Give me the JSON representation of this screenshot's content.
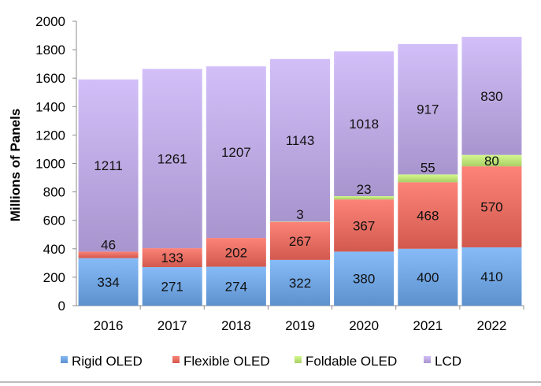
{
  "chart_data": {
    "type": "bar",
    "stacked": true,
    "title": "",
    "xlabel": "",
    "ylabel": "Millions of Panels",
    "ylim": [
      0,
      2000
    ],
    "yticks": [
      "0",
      "200",
      "400",
      "600",
      "800",
      "1000",
      "1200",
      "1400",
      "1600",
      "1800",
      "2000"
    ],
    "categories": [
      "2016",
      "2017",
      "2018",
      "2019",
      "2020",
      "2021",
      "2022"
    ],
    "series": [
      {
        "name": "Rigid OLED",
        "color": "#6a9fdc",
        "values": [
          334,
          271,
          274,
          322,
          380,
          400,
          410
        ],
        "labels": [
          "334",
          "271",
          "274",
          "322",
          "380",
          "400",
          "410"
        ]
      },
      {
        "name": "Flexible OLED",
        "color": "#e0675c",
        "values": [
          46,
          133,
          202,
          267,
          367,
          468,
          570
        ],
        "labels": [
          "46",
          "133",
          "202",
          "267",
          "367",
          "468",
          "570"
        ]
      },
      {
        "name": "Foldable OLED",
        "color": "#b6dc72",
        "values": [
          0,
          0,
          0,
          3,
          23,
          55,
          80
        ],
        "labels": [
          "",
          "",
          "",
          "3",
          "23",
          "55",
          "80"
        ]
      },
      {
        "name": "LCD",
        "color": "#b7a3dc",
        "values": [
          1211,
          1261,
          1207,
          1143,
          1018,
          917,
          830
        ],
        "labels": [
          "1211",
          "1261",
          "1207",
          "1143",
          "1018",
          "917",
          "830"
        ]
      }
    ],
    "legend_position": "bottom",
    "grid": false
  }
}
